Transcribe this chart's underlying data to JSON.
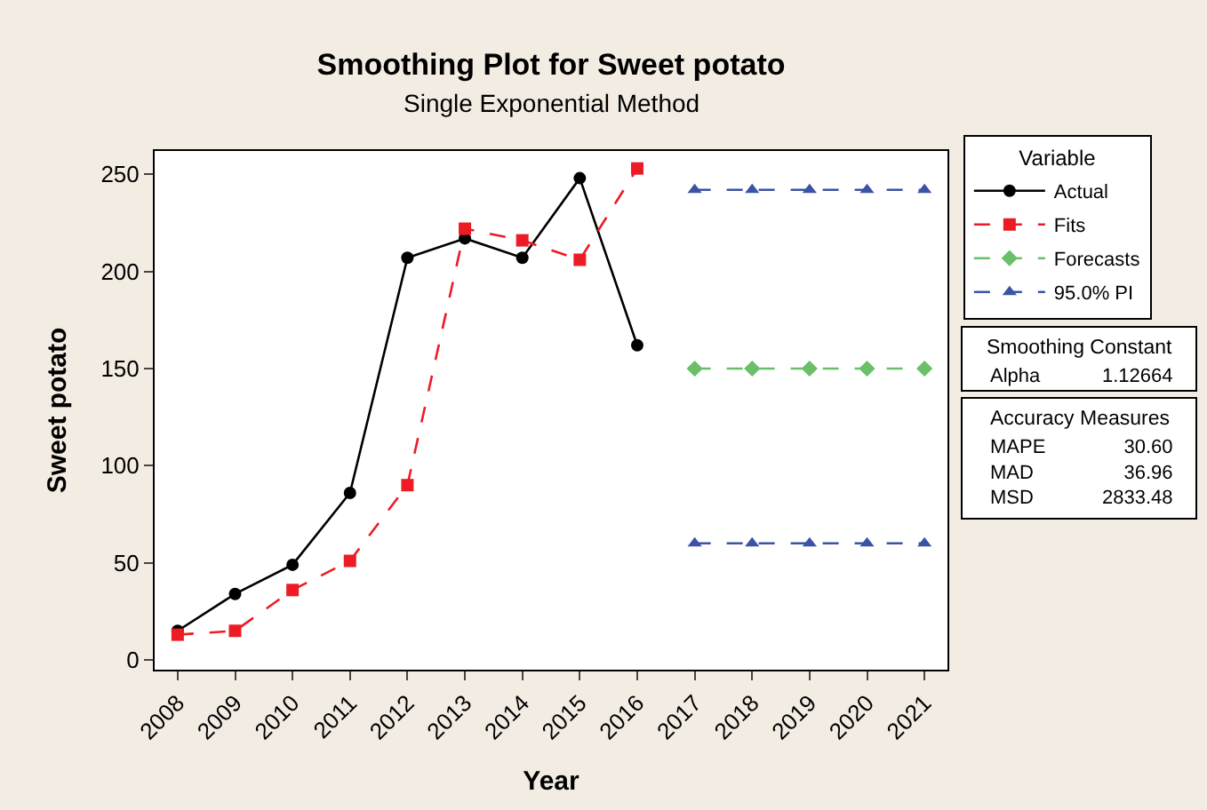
{
  "chart_data": {
    "type": "line",
    "title": "Smoothing Plot for Sweet potato",
    "subtitle": "Single Exponential Method",
    "xlabel": "Year",
    "ylabel": "Sweet potato",
    "legend_title": "Variable",
    "x": [
      2008,
      2009,
      2010,
      2011,
      2012,
      2013,
      2014,
      2015,
      2016
    ],
    "series": [
      {
        "name": "Actual",
        "color": "#000000",
        "marker": "circle",
        "line_style": "solid",
        "values": [
          15,
          34,
          49,
          86,
          207,
          217,
          207,
          248,
          162
        ]
      },
      {
        "name": "Fits",
        "color": "#ed1c24",
        "marker": "square",
        "line_style": "dashed",
        "values": [
          13,
          15,
          36,
          51,
          90,
          222,
          216,
          206,
          253
        ]
      },
      {
        "name": "Forecasts",
        "color": "#6abf69",
        "marker": "diamond",
        "line_style": "dashed",
        "x": [
          2017,
          2018,
          2019,
          2020,
          2021
        ],
        "values": [
          150,
          150,
          150,
          150,
          150
        ]
      },
      {
        "name": "95.0% PI",
        "color": "#3a53a4",
        "marker": "triangle",
        "line_style": "dashed",
        "x": [
          2017,
          2018,
          2019,
          2020,
          2021
        ],
        "values": [
          242,
          242,
          242,
          242,
          242
        ]
      },
      {
        "color": "#3a53a4",
        "marker": "triangle",
        "line_style": "dashed",
        "x": [
          2017,
          2018,
          2019,
          2020,
          2021
        ],
        "values": [
          60,
          60,
          60,
          60,
          60
        ]
      }
    ],
    "xlim": [
      2007.6,
      2021.4
    ],
    "xticks": [
      2008,
      2009,
      2010,
      2011,
      2012,
      2013,
      2014,
      2015,
      2016,
      2017,
      2018,
      2019,
      2020,
      2021
    ],
    "ylim": [
      -5,
      262
    ],
    "yticks": [
      0,
      50,
      100,
      150,
      200,
      250
    ],
    "legend": "top right",
    "annotations": [
      "Smoothing Constant",
      "Alpha",
      "1.12664",
      "Accuracy Measures",
      "MAPE",
      "30.60",
      "MAD",
      "36.96",
      "MSD",
      "2833.48"
    ]
  }
}
